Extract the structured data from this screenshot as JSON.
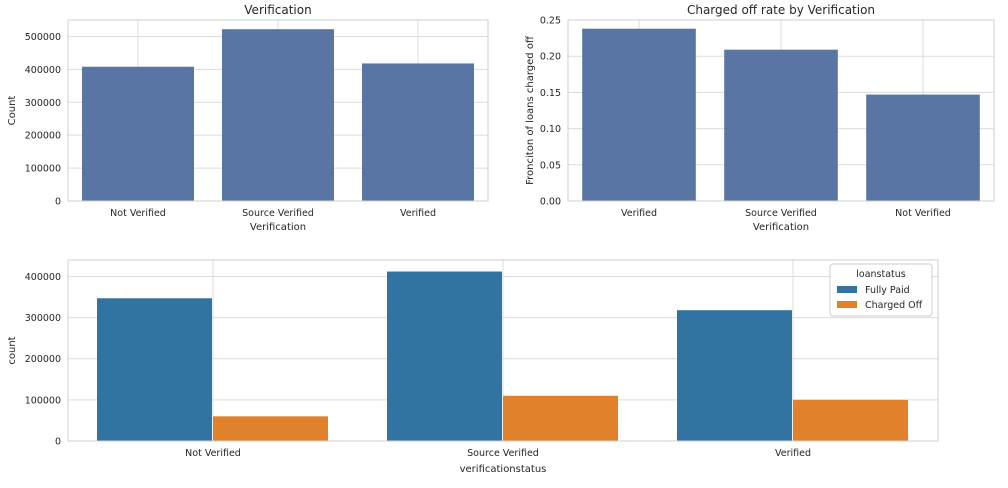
{
  "chart_data": [
    {
      "type": "bar",
      "title": "Verification",
      "xlabel": "",
      "ylabel": "Count",
      "categories": [
        "Not Verified",
        "Source Verified",
        "Verified"
      ],
      "values": [
        408000,
        522000,
        418000
      ],
      "ylim": [
        0,
        550000
      ],
      "yticks": [
        0,
        100000,
        200000,
        300000,
        400000,
        500000
      ],
      "grid": true,
      "color": "#5875a4"
    },
    {
      "type": "bar",
      "title": "Charged off rate by Verification",
      "xlabel": "Verification",
      "ylabel": "Fronciton of loans charged off",
      "categories": [
        "Verified",
        "Source Verified",
        "Not Verified"
      ],
      "values": [
        0.238,
        0.209,
        0.147
      ],
      "ylim": [
        0,
        0.25
      ],
      "yticks": [
        "0.00",
        "0.05",
        "0.10",
        "0.15",
        "0.20",
        "0.25"
      ],
      "grid": true,
      "color": "#5875a4"
    },
    {
      "type": "bar",
      "title": "",
      "xlabel": "verificationstatus",
      "ylabel": "count",
      "categories": [
        "Not Verified",
        "Source Verified",
        "Verified"
      ],
      "series": [
        {
          "name": "Fully Paid",
          "values": [
            347000,
            412000,
            318000
          ],
          "color": "#3274a1"
        },
        {
          "name": "Charged Off",
          "values": [
            60000,
            110000,
            100000
          ],
          "color": "#e1812c"
        }
      ],
      "ylim": [
        0,
        440000
      ],
      "yticks": [
        0,
        100000,
        200000,
        300000,
        400000
      ],
      "legend_title": "loanstatus",
      "legend_position": "top-right",
      "grid": true
    }
  ],
  "first_chart_xlabel": "Verification"
}
